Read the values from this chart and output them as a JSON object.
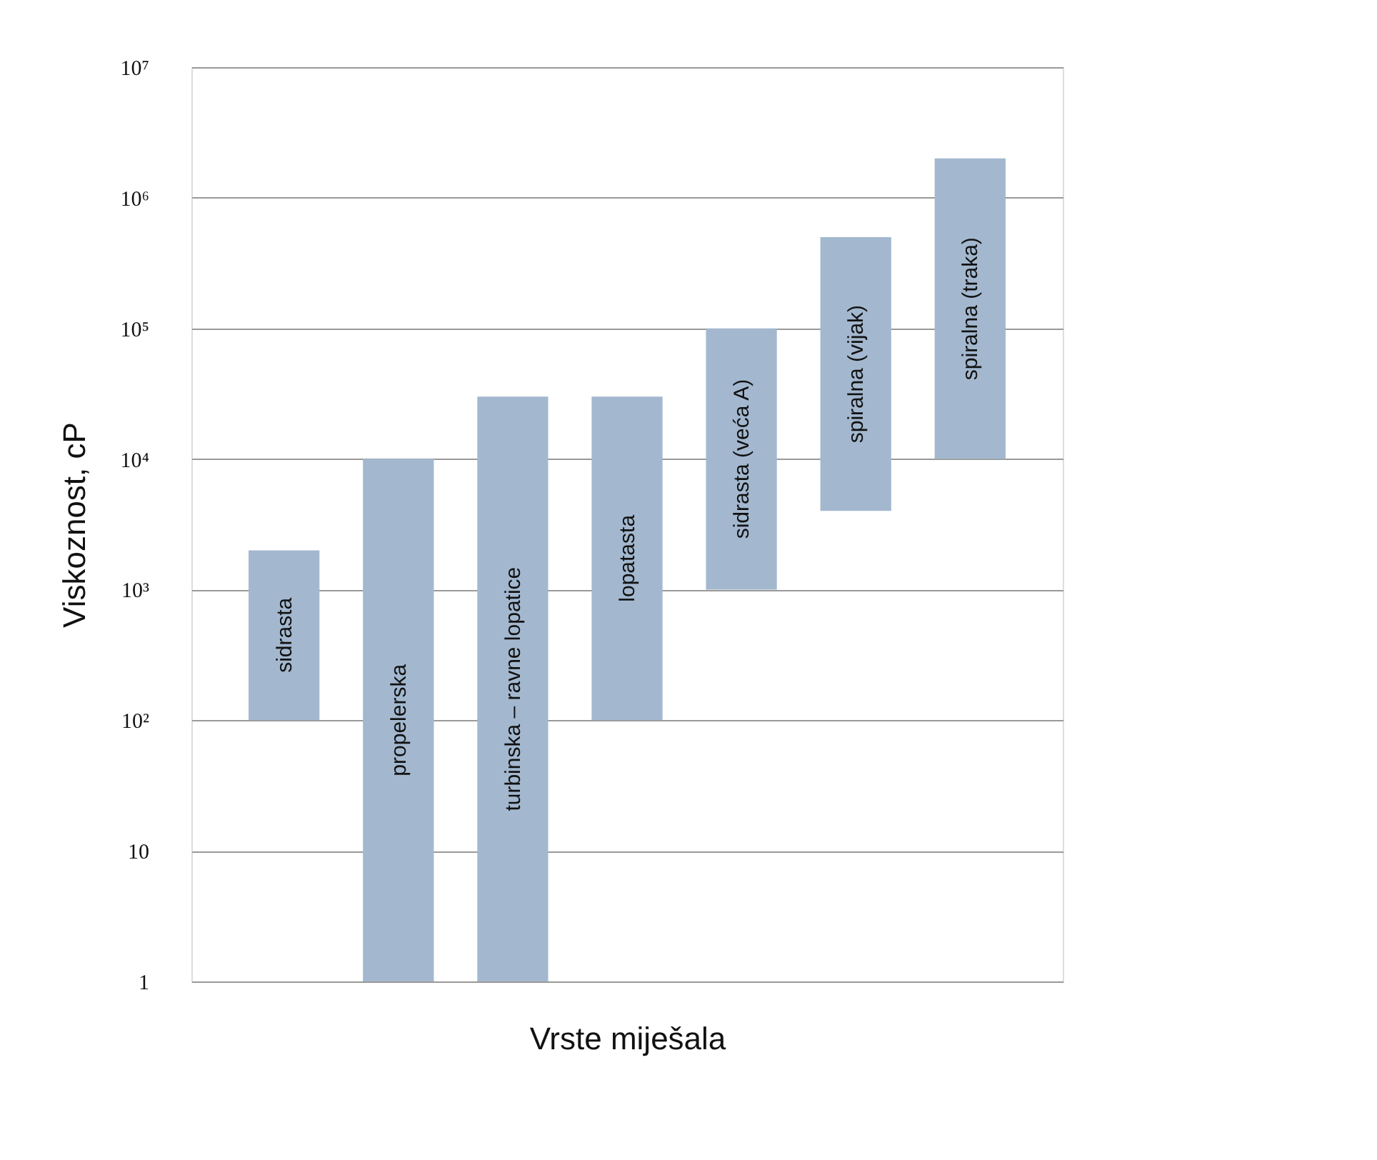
{
  "chart_data": {
    "type": "bar",
    "xlabel": "Vrste miješala",
    "ylabel": "Viskoznost, cP",
    "categories": [
      "sidrasta",
      "propelerska",
      "turbinska – ravne lopatice",
      "lopatasta",
      "sidrasta (veća A)",
      "spiralna (vijak)",
      "spiralna (traka)"
    ],
    "base": [
      100,
      1,
      1,
      100,
      1000,
      4000,
      10000
    ],
    "values": [
      1900,
      9999,
      29999,
      29900,
      99000,
      496000,
      1990000
    ],
    "color": "#a3b8cf",
    "log": true,
    "grid": "y",
    "tick_labels": "y",
    "ylim": [
      1,
      10000000
    ],
    "yticks": [
      1,
      10,
      {
        "value": 100,
        "label": "10²"
      },
      {
        "value": 1000,
        "label": "10³"
      },
      {
        "value": 10000,
        "label": "10⁴"
      },
      {
        "value": 100000,
        "label": "10⁵"
      },
      {
        "value": 1000000,
        "label": "10⁶"
      },
      {
        "value": 10000000,
        "label": "10⁷"
      }
    ]
  }
}
